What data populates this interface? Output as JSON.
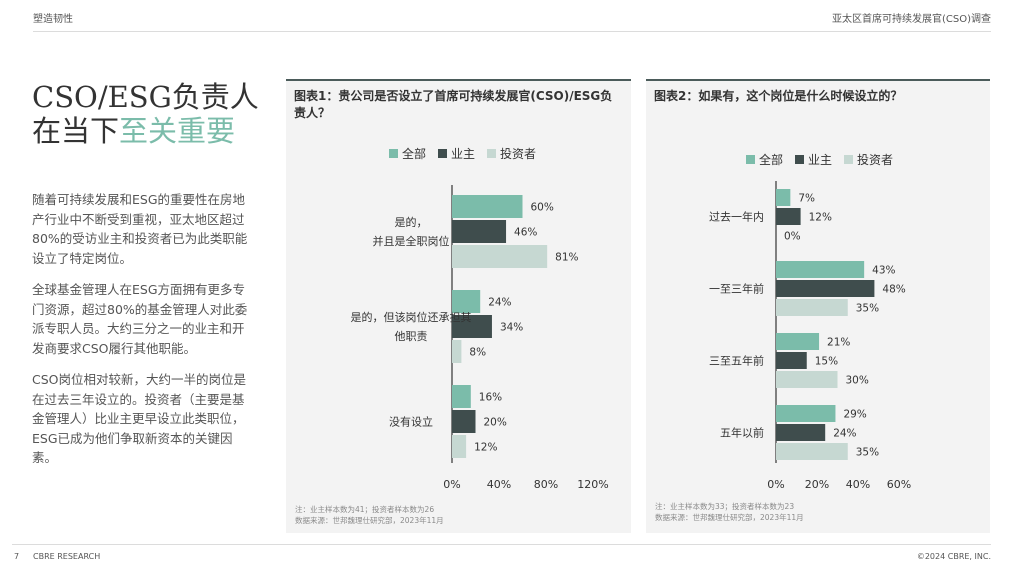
{
  "header": {
    "left": "塑造韧性",
    "right": "亚太区首席可持续发展官(CSO)调查"
  },
  "headline": {
    "part1": "CSO/ESG负责人在当下",
    "highlight": "至关重要"
  },
  "body": [
    "随着可持续发展和ESG的重要性在房地产行业中不断受到重视，亚太地区超过80%的受访业主和投资者已为此类职能设立了特定岗位。",
    "全球基金管理人在ESG方面拥有更多专门资源，超过80%的基金管理人对此委派专职人员。大约三分之一的业主和开发商要求CSO履行其他职能。",
    "CSO岗位相对较新，大约一半的岗位是在过去三年设立的。投资者（主要是基金管理人）比业主更早设立此类职位，ESG已成为他们争取新资本的关键因素。"
  ],
  "colors": {
    "all": "#7bbcaa",
    "owner": "#3f4d4d",
    "investor": "#c6d8d2",
    "highlight": "#7bbcaa",
    "panel_top": "#4b5b5a"
  },
  "chart_data": [
    {
      "type": "bar",
      "orientation": "horizontal",
      "title": "图表1：贵公司是否设立了首席可持续发展官(CSO)/ESG负责人？",
      "legend": [
        "全部",
        "业主",
        "投资者"
      ],
      "legend_position": "top",
      "categories": [
        [
          "是的，",
          "并且是全职岗位"
        ],
        [
          "是的，但该岗位还承担其",
          "他职责"
        ],
        [
          "没有设立"
        ]
      ],
      "series": [
        {
          "name": "全部",
          "color": "#7bbcaa",
          "values": [
            60,
            24,
            16
          ]
        },
        {
          "name": "业主",
          "color": "#3f4d4d",
          "values": [
            46,
            34,
            20
          ]
        },
        {
          "name": "投资者",
          "color": "#c6d8d2",
          "values": [
            81,
            8,
            12
          ]
        }
      ],
      "value_suffix": "%",
      "xlim": [
        0,
        120
      ],
      "xticks": [
        "0%",
        "40%",
        "80%",
        "120%"
      ],
      "tick_values": [
        0,
        40,
        80,
        120
      ],
      "grid": false,
      "note": [
        "注：业主样本数为41；投资者样本数为26",
        "数据来源：世邦魏理仕研究部，2023年11月"
      ]
    },
    {
      "type": "bar",
      "orientation": "horizontal",
      "title": "图表2：如果有，这个岗位是什么时候设立的？",
      "legend": [
        "全部",
        "业主",
        "投资者"
      ],
      "legend_position": "top",
      "categories": [
        [
          "过去一年内"
        ],
        [
          "一至三年前"
        ],
        [
          "三至五年前"
        ],
        [
          "五年以前"
        ]
      ],
      "series": [
        {
          "name": "全部",
          "color": "#7bbcaa",
          "values": [
            7,
            43,
            21,
            29
          ]
        },
        {
          "name": "业主",
          "color": "#3f4d4d",
          "values": [
            12,
            48,
            15,
            24
          ]
        },
        {
          "name": "投资者",
          "color": "#c6d8d2",
          "values": [
            0,
            35,
            30,
            35
          ]
        }
      ],
      "value_suffix": "%",
      "xlim": [
        0,
        60
      ],
      "xticks": [
        "0%",
        "20%",
        "40%",
        "60%"
      ],
      "tick_values": [
        0,
        20,
        40,
        60
      ],
      "grid": false,
      "note": [
        "注：业主样本数为33；投资者样本数为23",
        "数据来源：世邦魏理仕研究部，2023年11月"
      ]
    }
  ],
  "footer": {
    "page": "7",
    "left": "CBRE RESEARCH",
    "right": "©2024 CBRE, INC."
  }
}
